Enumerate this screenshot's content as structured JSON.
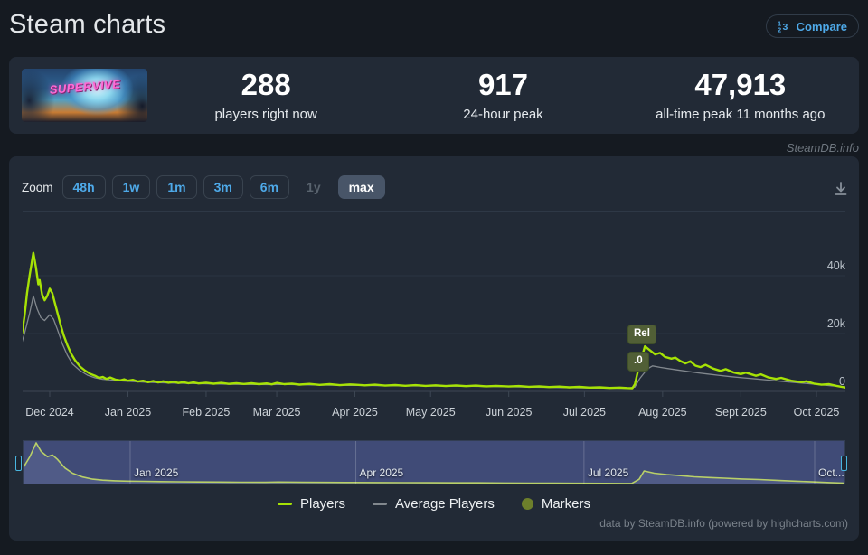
{
  "header": {
    "title": "Steam charts",
    "compare_label": "Compare"
  },
  "stats": {
    "game_title": "SUPERVIVE",
    "items": [
      {
        "value": "288",
        "label": "players right now"
      },
      {
        "value": "917",
        "label": "24-hour peak"
      },
      {
        "value": "47,913",
        "label": "all-time peak 11 months ago"
      }
    ]
  },
  "watermark": "SteamDB.info",
  "toolbar": {
    "zoom_label": "Zoom",
    "buttons": [
      {
        "label": "48h",
        "state": "enabled"
      },
      {
        "label": "1w",
        "state": "enabled"
      },
      {
        "label": "1m",
        "state": "enabled"
      },
      {
        "label": "3m",
        "state": "enabled"
      },
      {
        "label": "6m",
        "state": "enabled"
      },
      {
        "label": "1y",
        "state": "disabled"
      },
      {
        "label": "max",
        "state": "selected"
      }
    ]
  },
  "colors": {
    "accent_blue": "#4ea9e8",
    "players_line": "#a6e205",
    "average_line": "#82888e",
    "marker_olive": "#6d7f2b",
    "flag_bg": "#515f36",
    "panel_bg": "#222a36",
    "page_bg": "#151a21",
    "nav_mask": "rgba(86,98,168,0.55)"
  },
  "chart_data": {
    "type": "line",
    "title": "",
    "xlabel": "",
    "ylabel": "",
    "y_unit": "players",
    "x_unit": "days since 2024-12-01",
    "ylim": [
      0,
      52000
    ],
    "xlim_days": [
      -11,
      316
    ],
    "grid": true,
    "legend_position": "bottom-center",
    "y_ticks": [
      {
        "v": 0,
        "label": "0"
      },
      {
        "v": 20000,
        "label": "20k"
      },
      {
        "v": 40000,
        "label": "40k"
      }
    ],
    "x_ticks": [
      {
        "d": 0,
        "label": "Dec 2024"
      },
      {
        "d": 31,
        "label": "Jan 2025"
      },
      {
        "d": 62,
        "label": "Feb 2025"
      },
      {
        "d": 90,
        "label": "Mar 2025"
      },
      {
        "d": 121,
        "label": "Apr 2025"
      },
      {
        "d": 151,
        "label": "May 2025"
      },
      {
        "d": 182,
        "label": "Jun 2025"
      },
      {
        "d": 212,
        "label": "Jul 2025"
      },
      {
        "d": 243,
        "label": "Aug 2025"
      },
      {
        "d": 274,
        "label": "Sept 2025"
      },
      {
        "d": 304,
        "label": "Oct 2025"
      }
    ],
    "markers": [
      {
        "label": "Rel",
        "d": 232
      },
      {
        "label": ".0",
        "d": 232
      }
    ],
    "series": [
      {
        "name": "Average Players",
        "color": "#82888e",
        "width": 1.3,
        "points": [
          [
            -11,
            17000
          ],
          [
            -10,
            20000
          ],
          [
            -8,
            27000
          ],
          [
            -6.5,
            33000
          ],
          [
            -5,
            28500
          ],
          [
            -3.5,
            25500
          ],
          [
            -2,
            24500
          ],
          [
            0,
            26500
          ],
          [
            1.5,
            25000
          ],
          [
            3,
            21500
          ],
          [
            5,
            16500
          ],
          [
            7,
            12500
          ],
          [
            9,
            9500
          ],
          [
            12,
            7200
          ],
          [
            15,
            5600
          ],
          [
            18,
            4700
          ],
          [
            21,
            4200
          ],
          [
            25,
            3900
          ],
          [
            29,
            3600
          ],
          [
            33,
            3400
          ],
          [
            38,
            3150
          ],
          [
            43,
            3000
          ],
          [
            48,
            2900
          ],
          [
            53,
            2800
          ],
          [
            58,
            2700
          ],
          [
            64,
            2600
          ],
          [
            70,
            2500
          ],
          [
            76,
            2450
          ],
          [
            82,
            2400
          ],
          [
            88,
            2350
          ],
          [
            92,
            2450
          ],
          [
            97,
            2350
          ],
          [
            104,
            2250
          ],
          [
            111,
            2150
          ],
          [
            118,
            2100
          ],
          [
            125,
            2050
          ],
          [
            132,
            1980
          ],
          [
            139,
            1930
          ],
          [
            146,
            1880
          ],
          [
            153,
            1850
          ],
          [
            160,
            1800
          ],
          [
            167,
            1750
          ],
          [
            174,
            1680
          ],
          [
            182,
            1600
          ],
          [
            189,
            1500
          ],
          [
            196,
            1400
          ],
          [
            203,
            1300
          ],
          [
            210,
            1220
          ],
          [
            217,
            1150
          ],
          [
            224,
            1080
          ],
          [
            229,
            1040
          ],
          [
            232,
            1500
          ],
          [
            234,
            4500
          ],
          [
            237,
            7800
          ],
          [
            239,
            8800
          ],
          [
            242,
            8300
          ],
          [
            245,
            7900
          ],
          [
            249,
            7400
          ],
          [
            253,
            6900
          ],
          [
            257,
            6400
          ],
          [
            261,
            6000
          ],
          [
            265,
            5600
          ],
          [
            270,
            5100
          ],
          [
            275,
            4700
          ],
          [
            280,
            4300
          ],
          [
            285,
            3900
          ],
          [
            290,
            3500
          ],
          [
            295,
            3100
          ],
          [
            300,
            2750
          ],
          [
            305,
            2350
          ],
          [
            310,
            1950
          ],
          [
            316,
            1550
          ]
        ]
      },
      {
        "name": "Players",
        "color": "#a6e205",
        "width": 2.4,
        "points": [
          [
            -11,
            20000
          ],
          [
            -10,
            26000
          ],
          [
            -9,
            34000
          ],
          [
            -8,
            40000
          ],
          [
            -6.5,
            47900
          ],
          [
            -5.5,
            43000
          ],
          [
            -4.5,
            37000
          ],
          [
            -4,
            38500
          ],
          [
            -3,
            33500
          ],
          [
            -2,
            31500
          ],
          [
            -1,
            33000
          ],
          [
            0,
            35500
          ],
          [
            1,
            34000
          ],
          [
            2.5,
            29000
          ],
          [
            4,
            24000
          ],
          [
            5.5,
            19500
          ],
          [
            7,
            16000
          ],
          [
            8.5,
            13000
          ],
          [
            10,
            10800
          ],
          [
            12,
            8600
          ],
          [
            14,
            7200
          ],
          [
            16,
            6100
          ],
          [
            18,
            5400
          ],
          [
            19.5,
            4700
          ],
          [
            21,
            5000
          ],
          [
            22.5,
            4300
          ],
          [
            24,
            4800
          ],
          [
            26,
            4100
          ],
          [
            28,
            3800
          ],
          [
            29.5,
            4200
          ],
          [
            31,
            3700
          ],
          [
            33,
            4000
          ],
          [
            35,
            3400
          ],
          [
            37,
            3700
          ],
          [
            39,
            3200
          ],
          [
            41,
            3600
          ],
          [
            43,
            3100
          ],
          [
            45,
            3500
          ],
          [
            47,
            3000
          ],
          [
            49,
            3300
          ],
          [
            51,
            2900
          ],
          [
            53,
            3200
          ],
          [
            55,
            2800
          ],
          [
            57,
            3100
          ],
          [
            59,
            2750
          ],
          [
            62,
            3000
          ],
          [
            65,
            2650
          ],
          [
            68,
            2950
          ],
          [
            71,
            2600
          ],
          [
            74,
            2850
          ],
          [
            77,
            2550
          ],
          [
            80,
            2800
          ],
          [
            83,
            2500
          ],
          [
            86,
            2750
          ],
          [
            88,
            2450
          ],
          [
            90,
            2950
          ],
          [
            93,
            2500
          ],
          [
            96,
            2700
          ],
          [
            99,
            2350
          ],
          [
            103,
            2600
          ],
          [
            107,
            2250
          ],
          [
            111,
            2500
          ],
          [
            115,
            2150
          ],
          [
            119,
            2400
          ],
          [
            121,
            2300
          ],
          [
            125,
            2100
          ],
          [
            129,
            2300
          ],
          [
            133,
            2000
          ],
          [
            137,
            2200
          ],
          [
            141,
            1950
          ],
          [
            145,
            2150
          ],
          [
            149,
            1900
          ],
          [
            153,
            2100
          ],
          [
            157,
            1850
          ],
          [
            161,
            2050
          ],
          [
            165,
            1800
          ],
          [
            169,
            2000
          ],
          [
            173,
            1750
          ],
          [
            177,
            1900
          ],
          [
            182,
            1700
          ],
          [
            186,
            1850
          ],
          [
            190,
            1600
          ],
          [
            194,
            1750
          ],
          [
            198,
            1500
          ],
          [
            202,
            1650
          ],
          [
            206,
            1400
          ],
          [
            210,
            1550
          ],
          [
            214,
            1300
          ],
          [
            218,
            1400
          ],
          [
            222,
            1200
          ],
          [
            226,
            1300
          ],
          [
            229,
            1150
          ],
          [
            231,
            1100
          ],
          [
            232,
            2500
          ],
          [
            233.5,
            8000
          ],
          [
            236,
            15600
          ],
          [
            238,
            14200
          ],
          [
            240,
            12800
          ],
          [
            242,
            13300
          ],
          [
            244,
            11900
          ],
          [
            246.5,
            11300
          ],
          [
            248,
            11700
          ],
          [
            250,
            10500
          ],
          [
            252,
            9700
          ],
          [
            254,
            10400
          ],
          [
            256,
            8900
          ],
          [
            258,
            8400
          ],
          [
            260,
            9200
          ],
          [
            263,
            7900
          ],
          [
            266,
            7100
          ],
          [
            268,
            7700
          ],
          [
            271,
            6600
          ],
          [
            274,
            6000
          ],
          [
            276,
            6500
          ],
          [
            280,
            5400
          ],
          [
            282,
            5900
          ],
          [
            285,
            4800
          ],
          [
            288,
            4300
          ],
          [
            290,
            4700
          ],
          [
            294,
            3700
          ],
          [
            298,
            3200
          ],
          [
            300,
            3500
          ],
          [
            303,
            2700
          ],
          [
            306,
            2300
          ],
          [
            309,
            2500
          ],
          [
            312,
            1900
          ],
          [
            315,
            1400
          ],
          [
            316,
            1200
          ]
        ]
      }
    ],
    "legend": [
      {
        "label": "Players",
        "swatch": "line",
        "color": "#a6e205"
      },
      {
        "label": "Average Players",
        "swatch": "line",
        "color": "#82888e"
      },
      {
        "label": "Markers",
        "swatch": "circle",
        "color": "#6d7f2b"
      }
    ],
    "navigator": {
      "x_ticks": [
        {
          "d": 31,
          "label": "Jan 2025"
        },
        {
          "d": 121,
          "label": "Apr 2025"
        },
        {
          "d": 212,
          "label": "Jul 2025"
        },
        {
          "d": 304,
          "label": "Oct..."
        }
      ],
      "points": [
        [
          -11.5,
          20000
        ],
        [
          -9,
          32000
        ],
        [
          -6.5,
          47900
        ],
        [
          -4.5,
          38000
        ],
        [
          -2,
          32000
        ],
        [
          0,
          34000
        ],
        [
          2,
          29000
        ],
        [
          5,
          19000
        ],
        [
          8,
          13000
        ],
        [
          12,
          8600
        ],
        [
          16,
          6100
        ],
        [
          20,
          5000
        ],
        [
          25,
          4300
        ],
        [
          30,
          3900
        ],
        [
          36,
          3600
        ],
        [
          43,
          3300
        ],
        [
          50,
          3100
        ],
        [
          58,
          2900
        ],
        [
          66,
          2800
        ],
        [
          75,
          2650
        ],
        [
          85,
          2550
        ],
        [
          90,
          2800
        ],
        [
          100,
          2500
        ],
        [
          110,
          2350
        ],
        [
          120,
          2250
        ],
        [
          130,
          2150
        ],
        [
          140,
          2050
        ],
        [
          150,
          2000
        ],
        [
          160,
          1900
        ],
        [
          170,
          1850
        ],
        [
          180,
          1700
        ],
        [
          190,
          1600
        ],
        [
          200,
          1450
        ],
        [
          210,
          1350
        ],
        [
          220,
          1250
        ],
        [
          228,
          1150
        ],
        [
          231,
          1100
        ],
        [
          234,
          6000
        ],
        [
          236,
          15600
        ],
        [
          240,
          13000
        ],
        [
          245,
          11500
        ],
        [
          250,
          10300
        ],
        [
          256,
          8900
        ],
        [
          262,
          8000
        ],
        [
          268,
          7300
        ],
        [
          275,
          6400
        ],
        [
          282,
          5700
        ],
        [
          290,
          4600
        ],
        [
          297,
          3800
        ],
        [
          304,
          2900
        ],
        [
          310,
          2200
        ],
        [
          316,
          1600
        ]
      ]
    }
  },
  "credit": "data by SteamDB.info (powered by highcharts.com)"
}
